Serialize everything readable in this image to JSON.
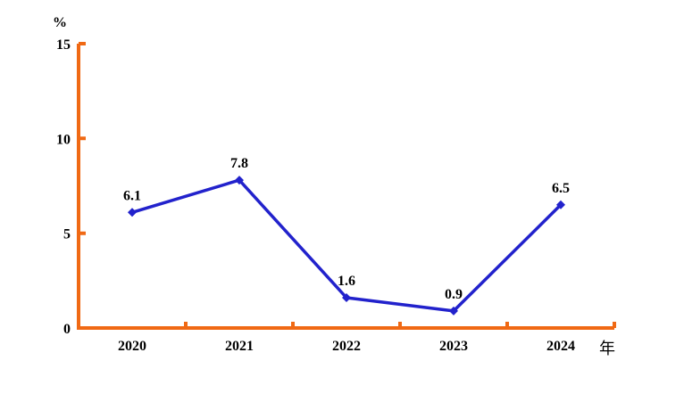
{
  "chart_data": {
    "type": "line",
    "title": "",
    "categories": [
      "2020",
      "2021",
      "2022",
      "2023",
      "2024"
    ],
    "values": [
      6.1,
      7.8,
      1.6,
      0.9,
      6.5
    ],
    "data_labels": [
      "6.1",
      "7.8",
      "1.6",
      "0.9",
      "6.5"
    ],
    "xlabel": "年",
    "ylabel": "%",
    "ylim": [
      0,
      15
    ],
    "y_ticks": [
      0,
      5,
      10,
      15
    ],
    "grid": false,
    "legend": "none",
    "marker": "diamond",
    "colors": {
      "line": "#2222cc",
      "axis": "#f06914",
      "text": "#000000",
      "background": "#ffffff"
    }
  }
}
